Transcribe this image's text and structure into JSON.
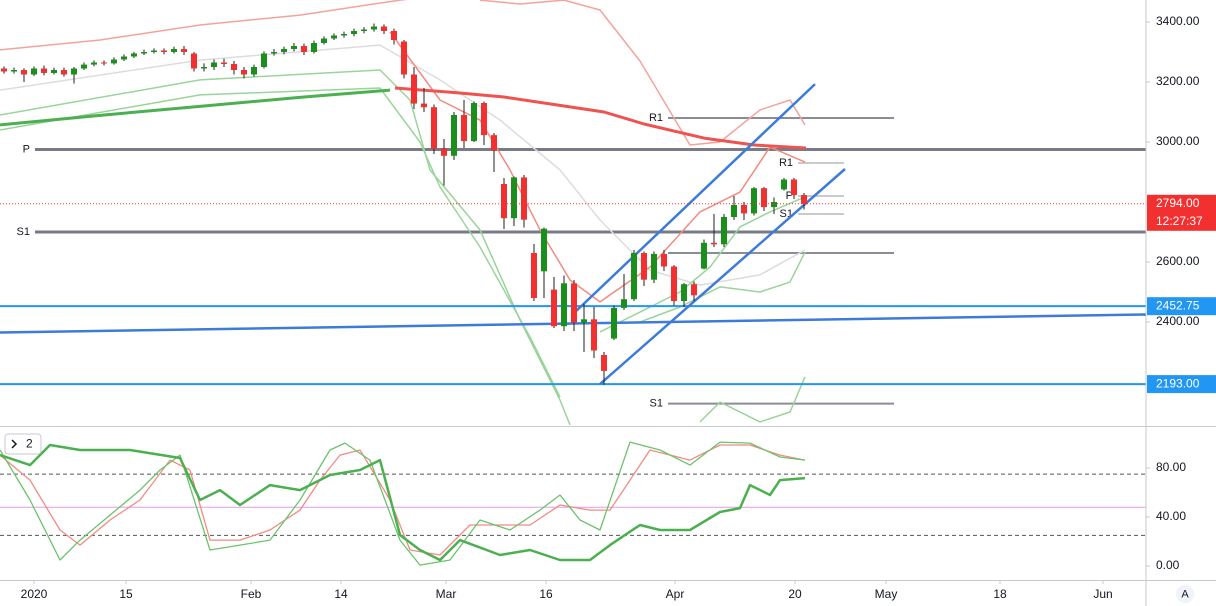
{
  "chart_data": [
    {
      "type": "candlestick",
      "xlim": [
        -0.4,
        114.2
      ],
      "ylim": [
        2056.7,
        3473.3
      ],
      "yticks": [
        {
          "value": 2400,
          "label": "2400.00"
        },
        {
          "value": 2600,
          "label": "2600.00"
        },
        {
          "value": 2800,
          "label": "2800.00"
        },
        {
          "value": 3000,
          "label": "3000.00"
        },
        {
          "value": 3200,
          "label": "3200.00"
        },
        {
          "value": 3400,
          "label": "3400.00"
        }
      ],
      "up_color": "#1b8f1b",
      "down_color": "#f23030",
      "x": [
        0,
        1,
        2,
        3,
        4,
        5,
        6,
        7,
        8,
        9,
        10,
        11,
        12,
        13,
        14,
        15,
        16,
        17,
        18,
        19,
        20,
        21,
        22,
        23,
        24,
        25,
        26,
        27,
        28,
        29,
        30,
        31,
        32,
        33,
        34,
        35,
        36,
        37,
        38,
        39,
        40,
        41,
        42,
        43,
        44,
        45,
        46,
        47,
        48,
        49,
        50,
        51,
        52,
        53,
        54,
        55,
        56,
        57,
        58,
        59,
        60,
        61,
        62,
        63,
        64,
        65,
        66,
        67,
        68,
        69,
        70,
        71,
        72,
        73,
        74,
        75,
        76,
        77,
        78,
        79,
        80
      ],
      "open": [
        3245,
        3235,
        3240,
        3225,
        3245,
        3230,
        3240,
        3225,
        3245,
        3258,
        3265,
        3262,
        3275,
        3285,
        3295,
        3300,
        3305,
        3300,
        3310,
        3295,
        3245,
        3250,
        3265,
        3260,
        3240,
        3225,
        3250,
        3295,
        3300,
        3310,
        3320,
        3300,
        3330,
        3345,
        3355,
        3360,
        3370,
        3375,
        3385,
        3370,
        3335,
        3225,
        3128,
        3116,
        2978,
        2954,
        3090,
        3003,
        3130,
        3023,
        2860,
        2746,
        2882,
        2630,
        2569,
        2508,
        2386,
        2529,
        2398,
        2409,
        2290,
        2345,
        2447,
        2476,
        2630,
        2541,
        2627,
        2585,
        2470,
        2526,
        2578,
        2664,
        2659,
        2750,
        2790,
        2762,
        2846,
        2783,
        2842,
        2875,
        2823
      ],
      "high": [
        3252,
        3248,
        3246,
        3252,
        3255,
        3248,
        3248,
        3250,
        3265,
        3272,
        3272,
        3282,
        3292,
        3300,
        3308,
        3312,
        3312,
        3318,
        3320,
        3300,
        3262,
        3275,
        3278,
        3270,
        3250,
        3258,
        3302,
        3310,
        3318,
        3330,
        3328,
        3338,
        3352,
        3362,
        3368,
        3378,
        3383,
        3395,
        3392,
        3378,
        3340,
        3250,
        3180,
        3125,
        3010,
        3100,
        3140,
        3135,
        3135,
        3030,
        2880,
        2885,
        2890,
        2660,
        2715,
        2550,
        2555,
        2540,
        2460,
        2450,
        2300,
        2455,
        2560,
        2640,
        2635,
        2635,
        2640,
        2590,
        2530,
        2535,
        2675,
        2760,
        2760,
        2820,
        2800,
        2850,
        2850,
        2815,
        2880,
        2880,
        2830
      ],
      "low": [
        3228,
        3228,
        3200,
        3220,
        3222,
        3225,
        3218,
        3195,
        3240,
        3252,
        3255,
        3258,
        3270,
        3280,
        3290,
        3295,
        3292,
        3295,
        3290,
        3235,
        3235,
        3240,
        3250,
        3225,
        3212,
        3218,
        3245,
        3288,
        3292,
        3302,
        3290,
        3295,
        3325,
        3340,
        3348,
        3352,
        3362,
        3368,
        3360,
        3325,
        3212,
        3110,
        3100,
        2960,
        2855,
        2940,
        2980,
        3000,
        2990,
        2900,
        2710,
        2720,
        2715,
        2470,
        2480,
        2380,
        2370,
        2370,
        2300,
        2280,
        2191,
        2340,
        2440,
        2470,
        2520,
        2530,
        2570,
        2455,
        2450,
        2470,
        2575,
        2650,
        2650,
        2740,
        2740,
        2755,
        2770,
        2760,
        2838,
        2810,
        2775
      ],
      "close": [
        3235,
        3240,
        3225,
        3245,
        3230,
        3240,
        3225,
        3245,
        3258,
        3265,
        3262,
        3275,
        3285,
        3295,
        3300,
        3305,
        3300,
        3310,
        3300,
        3245,
        3250,
        3265,
        3260,
        3240,
        3225,
        3250,
        3295,
        3300,
        3310,
        3320,
        3300,
        3330,
        3345,
        3355,
        3360,
        3370,
        3375,
        3385,
        3370,
        3340,
        3225,
        3128,
        3116,
        2978,
        2954,
        3090,
        3003,
        3130,
        3023,
        2972,
        2746,
        2882,
        2741,
        2480,
        2711,
        2386,
        2529,
        2398,
        2409,
        2305,
        2237,
        2447,
        2476,
        2630,
        2541,
        2627,
        2585,
        2470,
        2526,
        2489,
        2664,
        2659,
        2750,
        2790,
        2762,
        2846,
        2783,
        2800,
        2875,
        2823,
        2794
      ],
      "overlays": [
        {
          "color": "#dcdcdc",
          "width": 1.5,
          "x": [
            -0.4,
            19.6,
            37.6,
            43.6,
            49.6,
            55.6,
            59.6,
            64.6,
            69.6,
            75.6,
            80.1
          ],
          "values": [
            3173,
            3273,
            3323,
            3207,
            3073,
            2907,
            2740,
            2573,
            2523,
            2557,
            2640
          ]
        },
        {
          "color": "#9ad49a",
          "width": 1.5,
          "x": [
            -0.4,
            19.6,
            37.6,
            40.6,
            42.6,
            47.6,
            51.6,
            55.6,
            56.6
          ],
          "values": [
            3090,
            3207,
            3240,
            3140,
            2907,
            2707,
            2407,
            2140,
            2057
          ]
        },
        {
          "color": "#9ad49a",
          "width": 1.5,
          "x": [
            -0.4,
            19.6,
            37.6,
            41.6,
            43.6,
            47.6,
            52.6,
            55.6
          ],
          "values": [
            3040,
            3157,
            3180,
            3000,
            2850,
            2650,
            2350,
            2150
          ]
        },
        {
          "color": "#9ad49a",
          "width": 1.5,
          "x": [
            59.6,
            63.6,
            67.6,
            70.6,
            73.6,
            76.6,
            80.1
          ],
          "values": [
            2367,
            2433,
            2500,
            2583,
            2717,
            2767,
            2817
          ]
        },
        {
          "color": "#9ad49a",
          "width": 1.5,
          "x": [
            63.6,
            67.6,
            71.6,
            75.6,
            78.6,
            80.1
          ],
          "values": [
            2400,
            2450,
            2517,
            2500,
            2533,
            2633
          ]
        },
        {
          "color": "#9ad49a",
          "width": 1.5,
          "x": [
            69.6,
            71.6,
            75.6,
            78.6,
            80.1
          ],
          "values": [
            2067,
            2133,
            2067,
            2100,
            2217
          ]
        },
        {
          "color": "#f4a39c",
          "width": 1.5,
          "x": [
            -0.4,
            9.6,
            19.6,
            29.6,
            39.6,
            44
          ],
          "values": [
            3307,
            3340,
            3390,
            3423,
            3473,
            3490
          ]
        },
        {
          "color": "#f4a39c",
          "width": 1.5,
          "x": [
            47.6,
            51.6,
            56,
            59.6,
            63.6,
            68.6,
            71.6,
            75.6,
            78.6,
            80.1
          ],
          "values": [
            3473,
            3460,
            3473,
            3440,
            3270,
            2990,
            3000,
            3107,
            3140,
            3057
          ]
        },
        {
          "color": "#f28b82",
          "width": 1.5,
          "x": [
            38.6,
            43.6,
            47.6,
            50.6,
            53.6,
            56.6,
            59.6,
            64.6,
            69.6,
            73.6,
            76.6,
            80.1
          ],
          "values": [
            3367,
            3140,
            3073,
            2907,
            2707,
            2540,
            2467,
            2583,
            2767,
            2833,
            2983,
            2933
          ]
        },
        {
          "color": "#4caf50",
          "width": 3,
          "x": [
            -0.4,
            10,
            20,
            30,
            38.6
          ],
          "values": [
            3057,
            3090,
            3120,
            3150,
            3173
          ]
        },
        {
          "color": "#ef5350",
          "width": 3,
          "x": [
            39.1,
            45,
            50,
            55,
            60,
            64,
            70,
            75,
            80.2
          ],
          "values": [
            3180,
            3165,
            3150,
            3125,
            3100,
            3060,
            3013,
            2990,
            2980
          ]
        }
      ],
      "levels": [
        {
          "value": 2975,
          "x": [
            3.1,
            114.2
          ],
          "color": "#787b86",
          "width": 3,
          "label": "P"
        },
        {
          "value": 2700,
          "x": [
            3.1,
            114.2
          ],
          "color": "#787b86",
          "width": 3,
          "label": "S1"
        },
        {
          "value": 3080,
          "x": [
            66.4,
            89
          ],
          "color": "#8a8d96",
          "width": 2,
          "label": "R1"
        },
        {
          "value": 2630,
          "x": [
            66.4,
            89
          ],
          "color": "#8a8d96",
          "width": 2
        },
        {
          "value": 2128,
          "x": [
            66.4,
            89
          ],
          "color": "#8a8d96",
          "width": 2,
          "label": "S1"
        },
        {
          "value": 2930,
          "x": [
            79.4,
            84
          ],
          "color": "#b8b8b8",
          "width": 1.5,
          "label": "R1"
        },
        {
          "value": 2820,
          "x": [
            79.4,
            84
          ],
          "color": "#b8b8b8",
          "width": 1.5,
          "label": "P"
        },
        {
          "value": 2760,
          "x": [
            79.4,
            84
          ],
          "color": "#b8b8b8",
          "width": 1.5,
          "label": "S1"
        }
      ],
      "trendlines": [
        {
          "color": "#3d7bd9",
          "x": [
            -0.4,
            114.2
          ],
          "values": [
            2365,
            2425
          ]
        },
        {
          "color": "#3d7bd9",
          "x": [
            59.6,
            84.1
          ],
          "values": [
            2193,
            2910
          ]
        },
        {
          "color": "#3d7bd9",
          "x": [
            57.1,
            81.1
          ],
          "values": [
            2433,
            3193
          ]
        }
      ],
      "price_lines": [
        {
          "value": 2452.75,
          "label": "2452.75",
          "color": "#2196f3"
        },
        {
          "value": 2193,
          "label": "2193.00",
          "color": "#2196f3"
        }
      ],
      "last_price": {
        "value": 2794,
        "label": "2794.00",
        "time": "12:27:37",
        "color": "#f23030"
      }
    },
    {
      "type": "line",
      "label": "2",
      "xlim": [
        -0.4,
        114.2
      ],
      "ylim": [
        -11.4,
        112.7
      ],
      "yticks": [
        {
          "value": 0,
          "label": "0.00"
        },
        {
          "value": 40,
          "label": "40.00"
        },
        {
          "value": 80,
          "label": "80.00"
        }
      ],
      "xticks": [
        {
          "value": 3,
          "label": "2020"
        },
        {
          "value": 12.2,
          "label": "15"
        },
        {
          "value": 24.7,
          "label": "Feb"
        },
        {
          "value": 33.7,
          "label": "14"
        },
        {
          "value": 44.2,
          "label": "Mar"
        },
        {
          "value": 54.2,
          "label": "16"
        },
        {
          "value": 67.1,
          "label": "Apr"
        },
        {
          "value": 79.1,
          "label": "20"
        },
        {
          "value": 88.2,
          "label": "May"
        },
        {
          "value": 99.6,
          "label": "18"
        },
        {
          "value": 109.9,
          "label": "Jun"
        }
      ],
      "hlines": [
        {
          "value": 75,
          "color": "#555555",
          "dash": true
        },
        {
          "value": 25,
          "color": "#555555",
          "dash": true
        },
        {
          "value": 48,
          "color": "#e59be5",
          "dash": false
        }
      ],
      "series": [
        {
          "color": "#f28b82",
          "width": 1.3,
          "x": [
            -0.4,
            2.6,
            5.6,
            7.6,
            10.6,
            13.6,
            16.6,
            18.6,
            20.6,
            23.6,
            26.6,
            29.6,
            31.6,
            33.6,
            35.6,
            38.6,
            40.6,
            43.6,
            46.6,
            49.6,
            52.6,
            55.6,
            58.6,
            60.6,
            62.6,
            64.6,
            68.6,
            71.6,
            74.6,
            77.6,
            80.1
          ],
          "values": [
            90.6,
            70.2,
            29.4,
            17.1,
            37.6,
            53.9,
            86.5,
            78.4,
            21.2,
            21.2,
            29.4,
            45.7,
            70.2,
            90.6,
            94.7,
            53.9,
            13.1,
            9.0,
            33.5,
            33.5,
            33.5,
            49.8,
            45.7,
            45.7,
            70.2,
            94.7,
            86.5,
            98.8,
            98.8,
            90.6,
            86.5
          ]
        },
        {
          "color": "#6cc36c",
          "width": 1.3,
          "x": [
            -0.4,
            2.6,
            5.6,
            7.6,
            10.6,
            13.6,
            15.6,
            17.6,
            20.6,
            23.6,
            26.6,
            29.6,
            32.6,
            34.1,
            36.6,
            39.6,
            41.6,
            44.6,
            47.6,
            50.6,
            53.6,
            55.6,
            57.6,
            59.6,
            62.6,
            65.6,
            68.6,
            71.6,
            74.6,
            77.6,
            80.1
          ],
          "values": [
            94.7,
            53.9,
            4.9,
            21.2,
            41.6,
            62.0,
            78.4,
            90.6,
            13.1,
            17.1,
            21.2,
            53.9,
            94.7,
            100.4,
            86.5,
            21.2,
            0.8,
            4.9,
            37.6,
            29.4,
            45.7,
            58.0,
            37.6,
            29.4,
            101.2,
            94.7,
            82.4,
            101.2,
            100.4,
            89.0,
            86.5
          ]
        },
        {
          "color": "#4caf50",
          "width": 2.5,
          "x": [
            -0.4,
            2.6,
            4.6,
            7.6,
            12.6,
            17.6,
            19.6,
            21.6,
            23.6,
            26.6,
            29.6,
            32.6,
            35.6,
            37.6,
            39.6,
            41.6,
            43.6,
            45.6,
            49.6,
            52.6,
            55.6,
            58.6,
            60.6,
            63.6,
            65.6,
            68.6,
            71.6,
            73.6,
            74.6,
            76.6,
            77.6,
            80.1
          ],
          "values": [
            90.6,
            82.4,
            98.8,
            94.7,
            94.7,
            88.2,
            53.9,
            62.0,
            49.8,
            66.1,
            62.0,
            74.3,
            78.4,
            86.5,
            25.3,
            13.1,
            4.9,
            21.2,
            9.0,
            13.1,
            4.9,
            4.9,
            17.1,
            33.5,
            29.4,
            29.4,
            44.1,
            47.3,
            66.1,
            58.0,
            70.2,
            71.8
          ]
        }
      ]
    }
  ],
  "ui": {
    "autoscale": "A"
  }
}
